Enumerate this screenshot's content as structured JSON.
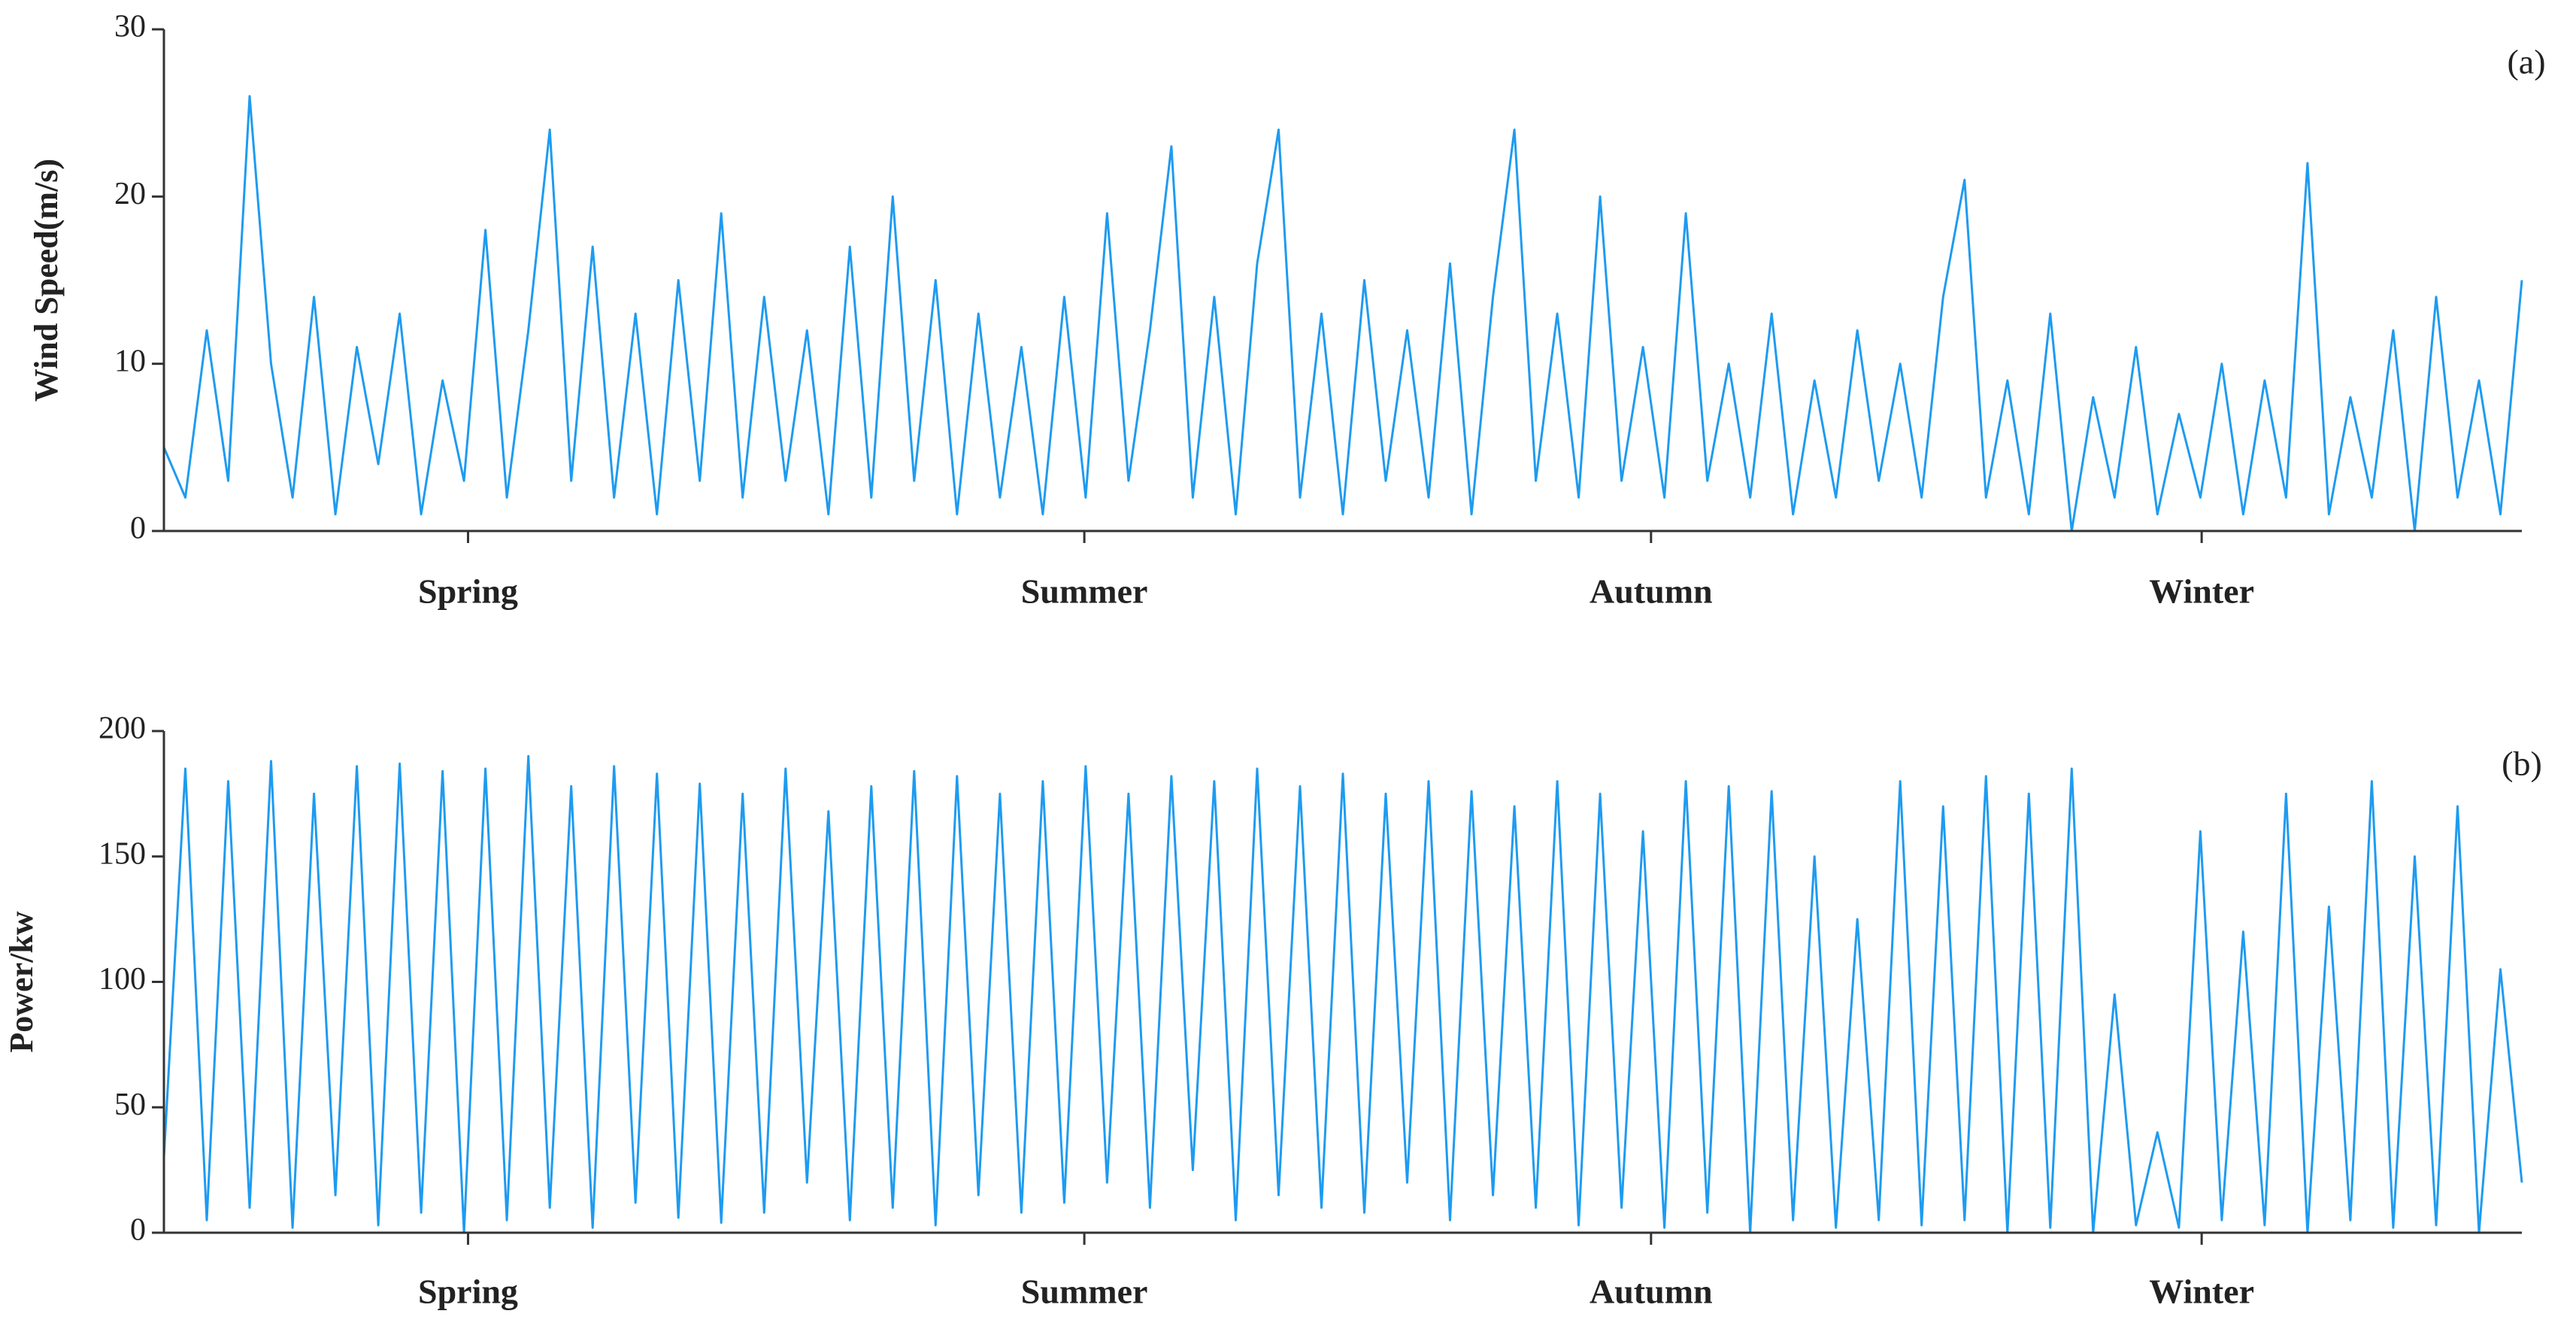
{
  "chart_data": [
    {
      "type": "line",
      "ylabel": "Wind Speed(m/s)",
      "annotation": "(a)",
      "color": "#1e9bf0",
      "xlim": [
        0,
        8800
      ],
      "xticks": [
        {
          "value": 1135,
          "label": "Spring"
        },
        {
          "value": 3435,
          "label": "Summer"
        },
        {
          "value": 5550,
          "label": "Autumn"
        },
        {
          "value": 7605,
          "label": "Winter"
        }
      ],
      "ylim": [
        0,
        30
      ],
      "yticks": [
        0,
        10,
        20,
        30
      ],
      "x": [
        0,
        80,
        160,
        240,
        320,
        400,
        480,
        560,
        640,
        720,
        800,
        880,
        960,
        1040,
        1120,
        1200,
        1280,
        1360,
        1440,
        1520,
        1600,
        1680,
        1760,
        1840,
        1920,
        2000,
        2080,
        2160,
        2240,
        2320,
        2400,
        2480,
        2560,
        2640,
        2720,
        2800,
        2880,
        2960,
        3040,
        3120,
        3200,
        3280,
        3360,
        3440,
        3520,
        3600,
        3680,
        3760,
        3840,
        3920,
        4000,
        4080,
        4160,
        4240,
        4320,
        4400,
        4480,
        4560,
        4640,
        4720,
        4800,
        4880,
        4960,
        5040,
        5120,
        5200,
        5280,
        5360,
        5440,
        5520,
        5600,
        5680,
        5760,
        5840,
        5920,
        6000,
        6080,
        6160,
        6240,
        6320,
        6400,
        6480,
        6560,
        6640,
        6720,
        6800,
        6880,
        6960,
        7040,
        7120,
        7200,
        7280,
        7360,
        7440,
        7520,
        7600,
        7680,
        7760,
        7840,
        7920,
        8000,
        8080,
        8160,
        8240,
        8320,
        8400,
        8480,
        8560,
        8640,
        8720,
        8800
      ],
      "values": [
        5,
        2,
        12,
        3,
        26,
        10,
        2,
        14,
        1,
        11,
        4,
        13,
        1,
        9,
        3,
        18,
        2,
        12,
        24,
        3,
        17,
        2,
        13,
        1,
        15,
        3,
        19,
        2,
        14,
        3,
        12,
        1,
        17,
        2,
        20,
        3,
        15,
        1,
        13,
        2,
        11,
        1,
        14,
        2,
        19,
        3,
        12,
        23,
        2,
        14,
        1,
        16,
        24,
        2,
        13,
        1,
        15,
        3,
        12,
        2,
        16,
        1,
        14,
        24,
        3,
        13,
        2,
        20,
        3,
        11,
        2,
        19,
        3,
        10,
        2,
        13,
        1,
        9,
        2,
        12,
        3,
        10,
        2,
        14,
        21,
        2,
        9,
        1,
        13,
        0,
        8,
        2,
        11,
        1,
        7,
        2,
        10,
        1,
        9,
        2,
        22,
        1,
        8,
        2,
        12,
        0,
        14,
        2,
        9,
        1,
        15
      ]
    },
    {
      "type": "line",
      "ylabel": "Power/kw",
      "annotation": "(b)",
      "color": "#1e9bf0",
      "xlim": [
        0,
        8800
      ],
      "xticks": [
        {
          "value": 1135,
          "label": "Spring"
        },
        {
          "value": 3435,
          "label": "Summer"
        },
        {
          "value": 5550,
          "label": "Autumn"
        },
        {
          "value": 7605,
          "label": "Winter"
        }
      ],
      "ylim": [
        0,
        200
      ],
      "yticks": [
        0,
        50,
        100,
        150,
        200
      ],
      "x": [
        0,
        80,
        160,
        240,
        320,
        400,
        480,
        560,
        640,
        720,
        800,
        880,
        960,
        1040,
        1120,
        1200,
        1280,
        1360,
        1440,
        1520,
        1600,
        1680,
        1760,
        1840,
        1920,
        2000,
        2080,
        2160,
        2240,
        2320,
        2400,
        2480,
        2560,
        2640,
        2720,
        2800,
        2880,
        2960,
        3040,
        3120,
        3200,
        3280,
        3360,
        3440,
        3520,
        3600,
        3680,
        3760,
        3840,
        3920,
        4000,
        4080,
        4160,
        4240,
        4320,
        4400,
        4480,
        4560,
        4640,
        4720,
        4800,
        4880,
        4960,
        5040,
        5120,
        5200,
        5280,
        5360,
        5440,
        5520,
        5600,
        5680,
        5760,
        5840,
        5920,
        6000,
        6080,
        6160,
        6240,
        6320,
        6400,
        6480,
        6560,
        6640,
        6720,
        6800,
        6880,
        6960,
        7040,
        7120,
        7200,
        7280,
        7360,
        7440,
        7520,
        7600,
        7680,
        7760,
        7840,
        7920,
        8000,
        8080,
        8160,
        8240,
        8320,
        8400,
        8480,
        8560,
        8640,
        8720,
        8800
      ],
      "values": [
        30,
        185,
        5,
        180,
        10,
        188,
        2,
        175,
        15,
        186,
        3,
        187,
        8,
        184,
        0,
        185,
        5,
        190,
        10,
        178,
        2,
        186,
        12,
        183,
        6,
        179,
        4,
        175,
        8,
        185,
        20,
        168,
        5,
        178,
        10,
        184,
        3,
        182,
        15,
        175,
        8,
        180,
        12,
        186,
        20,
        175,
        10,
        182,
        25,
        180,
        5,
        185,
        15,
        178,
        10,
        183,
        8,
        175,
        20,
        180,
        5,
        176,
        15,
        170,
        10,
        180,
        3,
        175,
        10,
        160,
        2,
        180,
        8,
        178,
        0,
        176,
        5,
        150,
        2,
        125,
        5,
        180,
        3,
        170,
        5,
        182,
        0,
        175,
        2,
        185,
        0,
        95,
        3,
        40,
        2,
        160,
        5,
        120,
        3,
        175,
        0,
        130,
        5,
        180,
        2,
        150,
        3,
        170,
        0,
        105,
        20
      ]
    }
  ]
}
